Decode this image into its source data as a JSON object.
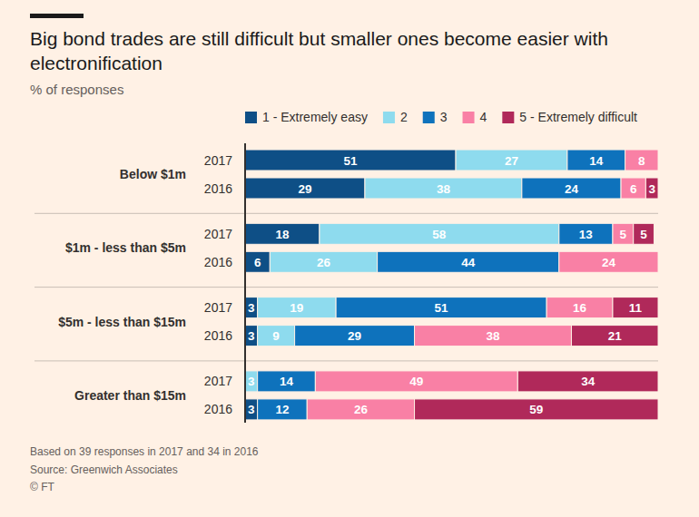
{
  "chart_data": {
    "type": "bar",
    "orientation": "horizontal",
    "stacked": true,
    "data_labels": true,
    "tick_labels": "y",
    "grid": false,
    "title": "Big bond trades are still difficult but smaller ones become easier with electronification",
    "subtitle": "% of responses",
    "groups": [
      "Below $1m",
      "$1m - less than $5m",
      "$5m - less than $15m",
      "Greater than $15m"
    ],
    "categories": [
      "2017",
      "2016",
      "2017",
      "2016",
      "2017",
      "2016",
      "2017",
      "2016"
    ],
    "xlim": [
      0,
      100
    ],
    "series": [
      {
        "name": "1 - Extremely easy",
        "color": "#0e4f86",
        "values": [
          51,
          29,
          18,
          6,
          3,
          3,
          0,
          3
        ]
      },
      {
        "name": "2",
        "color": "#8edbee",
        "values": [
          27,
          38,
          58,
          26,
          19,
          9,
          3,
          0
        ]
      },
      {
        "name": "3",
        "color": "#0e72bc",
        "values": [
          14,
          24,
          13,
          44,
          51,
          29,
          14,
          12
        ]
      },
      {
        "name": "4",
        "color": "#f980a5",
        "values": [
          8,
          6,
          5,
          24,
          16,
          38,
          49,
          26
        ]
      },
      {
        "name": "5 - Extremely difficult",
        "color": "#b0295a",
        "values": [
          0,
          3,
          5,
          0,
          11,
          21,
          34,
          59
        ]
      }
    ],
    "footnotes": [
      "Based on 39 responses in 2017 and 34 in 2016",
      "Source: Greenwich Associates",
      "© FT"
    ]
  }
}
